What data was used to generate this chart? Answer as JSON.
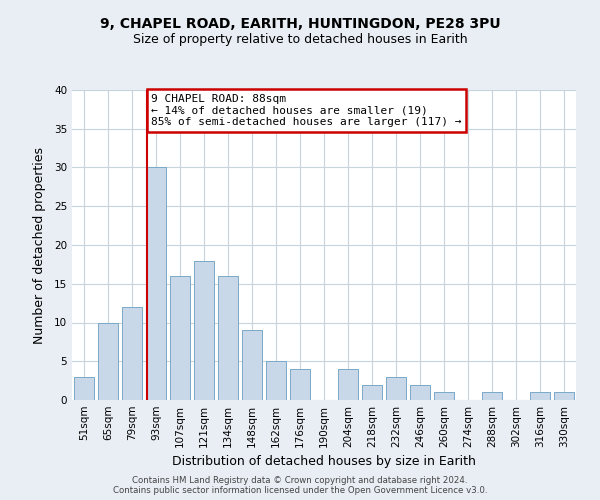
{
  "title1": "9, CHAPEL ROAD, EARITH, HUNTINGDON, PE28 3PU",
  "title2": "Size of property relative to detached houses in Earith",
  "xlabel": "Distribution of detached houses by size in Earith",
  "ylabel": "Number of detached properties",
  "bar_labels": [
    "51sqm",
    "65sqm",
    "79sqm",
    "93sqm",
    "107sqm",
    "121sqm",
    "134sqm",
    "148sqm",
    "162sqm",
    "176sqm",
    "190sqm",
    "204sqm",
    "218sqm",
    "232sqm",
    "246sqm",
    "260sqm",
    "274sqm",
    "288sqm",
    "302sqm",
    "316sqm",
    "330sqm"
  ],
  "bar_values": [
    3,
    10,
    12,
    30,
    16,
    18,
    16,
    9,
    5,
    4,
    0,
    4,
    2,
    3,
    2,
    1,
    0,
    1,
    0,
    1,
    1
  ],
  "bar_color": "#c8d8e8",
  "bar_edgecolor": "#7aa8c8",
  "annotation_title": "9 CHAPEL ROAD: 88sqm",
  "annotation_line1": "← 14% of detached houses are smaller (19)",
  "annotation_line2": "85% of semi-detached houses are larger (117) →",
  "annotation_box_facecolor": "#ffffff",
  "annotation_box_edgecolor": "#cc0000",
  "reference_line_color": "#cc0000",
  "ylim": [
    0,
    40
  ],
  "yticks": [
    0,
    5,
    10,
    15,
    20,
    25,
    30,
    35,
    40
  ],
  "footer1": "Contains HM Land Registry data © Crown copyright and database right 2024.",
  "footer2": "Contains public sector information licensed under the Open Government Licence v3.0.",
  "bg_color": "#e8eef4",
  "plot_bg_color": "#ffffff",
  "grid_color": "#c8d4dc",
  "title1_fontsize": 10,
  "title2_fontsize": 9,
  "xlabel_fontsize": 9,
  "ylabel_fontsize": 9,
  "tick_fontsize": 7.5,
  "footer_fontsize": 6.2,
  "annot_fontsize": 8
}
